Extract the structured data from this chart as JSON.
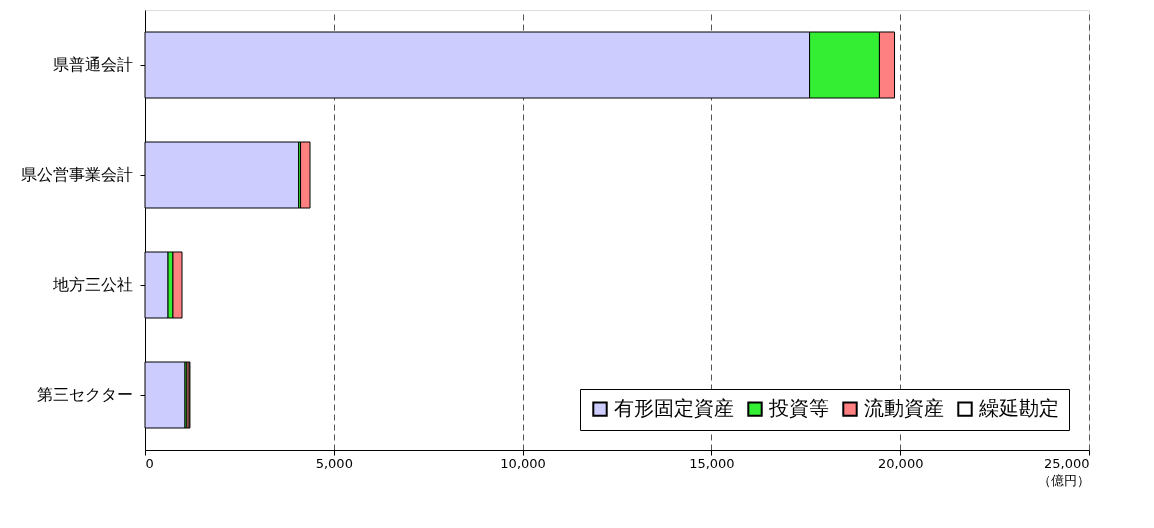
{
  "chart_data": {
    "type": "bar",
    "orientation": "horizontal",
    "stacked": true,
    "categories": [
      "県普通会計",
      "県公営事業会計",
      "地方三公社",
      "第三セクター"
    ],
    "series": [
      {
        "name": "有形固定資産",
        "color": "#ccccff",
        "values": [
          17600,
          4070,
          610,
          1060
        ]
      },
      {
        "name": "投資等",
        "color": "#33ee33",
        "values": [
          1850,
          50,
          130,
          50
        ]
      },
      {
        "name": "流動資産",
        "color": "#ff8080",
        "values": [
          400,
          250,
          240,
          60
        ]
      },
      {
        "name": "繰延勘定",
        "color": "#ffffff",
        "values": [
          null,
          null,
          null,
          20
        ]
      }
    ],
    "xlim": [
      0,
      25000
    ],
    "xticks": [
      0,
      {
        "value": 5000,
        "label": "5,000"
      },
      {
        "value": 10000,
        "label": "10,000"
      },
      {
        "value": 15000,
        "label": "15,000"
      },
      {
        "value": 20000,
        "label": "20,000"
      },
      {
        "value": 25000,
        "label": "25,000"
      }
    ],
    "xlabel": "（億円）",
    "grid": "x",
    "legend": "bottom right"
  }
}
